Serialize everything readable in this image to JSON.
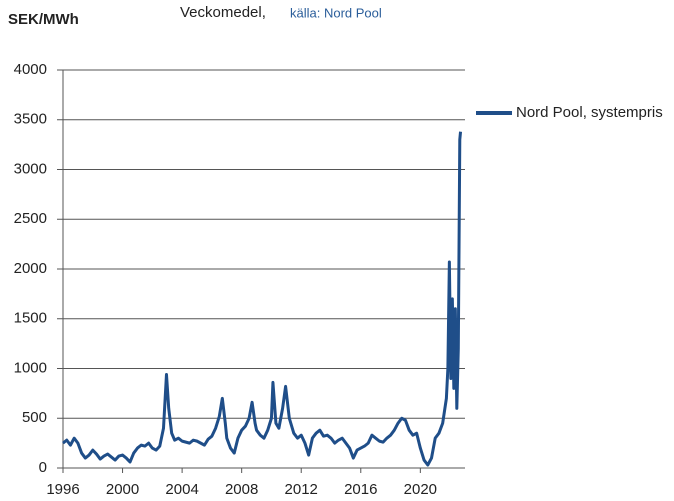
{
  "chart_data": {
    "type": "line",
    "title": "Veckomedel,",
    "subtitle": "källa: Nord Pool",
    "y_label": "SEK/MWh",
    "xlim": [
      1996,
      2023
    ],
    "xticks": [
      1996,
      2000,
      2004,
      2008,
      2012,
      2016,
      2020
    ],
    "ylim": [
      0,
      4000
    ],
    "yticks": [
      0,
      500,
      1000,
      1500,
      2000,
      2500,
      3000,
      3500,
      4000
    ],
    "grid": true,
    "legend": "right",
    "x": [
      1996,
      1996.25,
      1996.5,
      1996.75,
      1997,
      1997.25,
      1997.5,
      1997.75,
      1998,
      1998.25,
      1998.5,
      1998.75,
      1999,
      1999.25,
      1999.5,
      1999.75,
      2000,
      2000.25,
      2000.5,
      2000.75,
      2001,
      2001.25,
      2001.5,
      2001.75,
      2002,
      2002.25,
      2002.5,
      2002.75,
      2002.95,
      2003.1,
      2003.3,
      2003.5,
      2003.75,
      2004,
      2004.25,
      2004.5,
      2004.75,
      2005,
      2005.25,
      2005.5,
      2005.75,
      2006,
      2006.25,
      2006.5,
      2006.7,
      2006.9,
      2007,
      2007.25,
      2007.5,
      2007.75,
      2008,
      2008.25,
      2008.5,
      2008.7,
      2008.9,
      2009,
      2009.25,
      2009.5,
      2009.75,
      2010,
      2010.1,
      2010.3,
      2010.5,
      2010.75,
      2010.95,
      2011.2,
      2011.5,
      2011.75,
      2012,
      2012.25,
      2012.5,
      2012.75,
      2013,
      2013.25,
      2013.5,
      2013.75,
      2014,
      2014.25,
      2014.5,
      2014.75,
      2015,
      2015.25,
      2015.5,
      2015.75,
      2016,
      2016.25,
      2016.5,
      2016.75,
      2017,
      2017.25,
      2017.5,
      2017.75,
      2018,
      2018.25,
      2018.5,
      2018.75,
      2019,
      2019.25,
      2019.5,
      2019.75,
      2020,
      2020.25,
      2020.5,
      2020.75,
      2021,
      2021.25,
      2021.5,
      2021.75,
      2021.85,
      2021.95,
      2022.05,
      2022.15,
      2022.25,
      2022.35,
      2022.45,
      2022.55,
      2022.65,
      2022.7
    ],
    "series": [
      {
        "name": "Nord Pool, systempris",
        "color": "#1f4e89",
        "values": [
          250,
          280,
          230,
          300,
          250,
          150,
          100,
          130,
          180,
          140,
          90,
          120,
          140,
          110,
          80,
          120,
          130,
          100,
          60,
          150,
          200,
          230,
          220,
          250,
          200,
          180,
          220,
          400,
          940,
          600,
          350,
          280,
          300,
          270,
          260,
          250,
          280,
          270,
          250,
          230,
          290,
          320,
          400,
          520,
          700,
          450,
          300,
          200,
          150,
          300,
          380,
          420,
          500,
          660,
          450,
          380,
          330,
          300,
          380,
          500,
          860,
          450,
          400,
          600,
          820,
          500,
          350,
          300,
          330,
          250,
          130,
          300,
          350,
          380,
          320,
          330,
          300,
          250,
          280,
          300,
          250,
          200,
          100,
          180,
          200,
          220,
          250,
          330,
          300,
          270,
          260,
          300,
          330,
          380,
          450,
          500,
          480,
          380,
          330,
          350,
          200,
          80,
          30,
          100,
          300,
          350,
          450,
          700,
          1000,
          2070,
          900,
          1700,
          800,
          1600,
          600,
          1200,
          3300,
          3380
        ]
      }
    ]
  }
}
